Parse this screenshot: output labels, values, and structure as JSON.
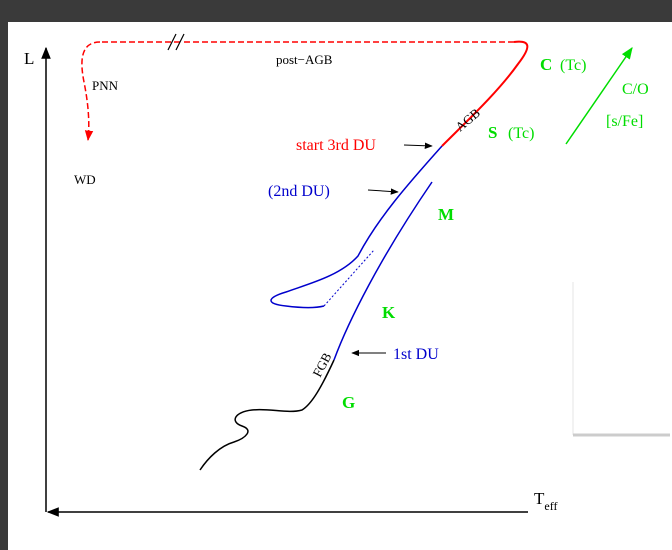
{
  "axes": {
    "y_label": "L",
    "x_label_main": "T",
    "x_label_sub": "eff"
  },
  "phase_labels": {
    "post_agb": "post−AGB",
    "pnn": "PNN",
    "wd": "WD",
    "agb": "AGB",
    "fgb": "FGB"
  },
  "event_labels": {
    "start_3rd_du": "start 3rd DU",
    "second_du": "(2nd DU)",
    "first_du": "1st DU"
  },
  "spectral_labels": {
    "c": "C",
    "c_tc": "(Tc)",
    "s": "S",
    "s_tc": "(Tc)",
    "m": "M",
    "k": "K",
    "g": "G"
  },
  "trend_labels": {
    "co": "C/O",
    "sfe": "[s/Fe]"
  },
  "colors": {
    "red": "#ff0000",
    "blue": "#0000cc",
    "green": "#00dd00",
    "black": "#000000"
  }
}
